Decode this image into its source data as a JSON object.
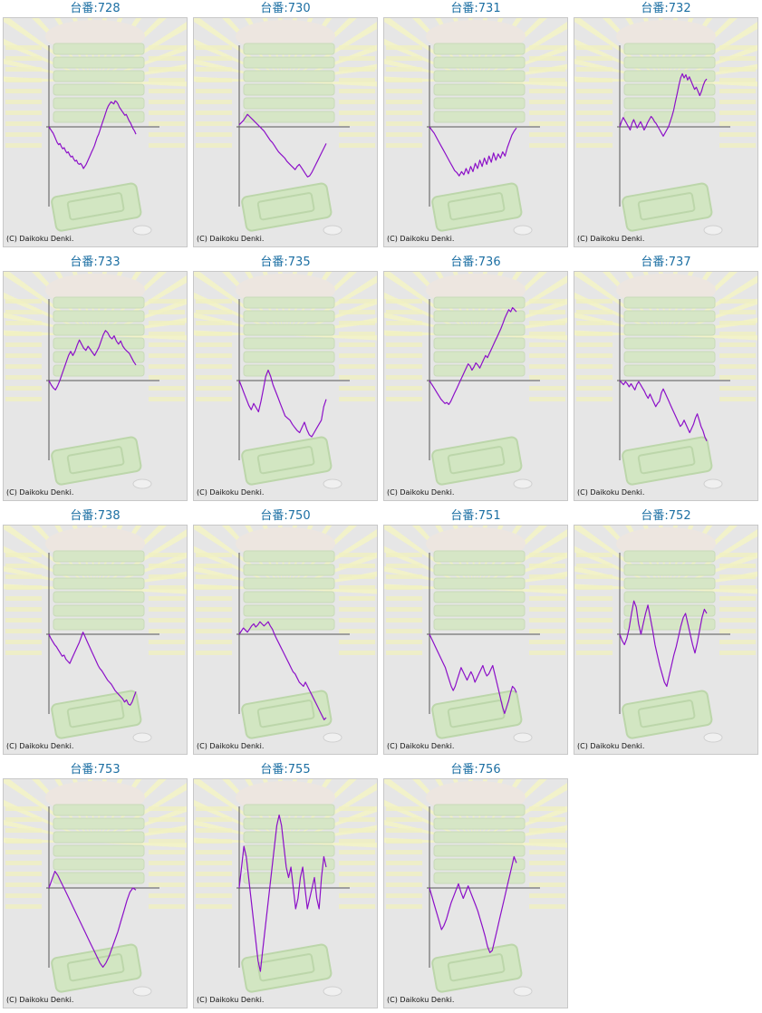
{
  "copyright": "(C) Daikoku Denki.",
  "colors": {
    "line": "#8c10c8",
    "axis": "#555555",
    "panel_bg": "#e6e6e6",
    "title": "#1c6fa3"
  },
  "chart_data": [
    {
      "type": "line",
      "title": "台番:728",
      "values": [
        0,
        -2,
        -4,
        -6,
        -9,
        -12,
        -15,
        -17,
        -16,
        -19,
        -21,
        -20,
        -23,
        -25,
        -24,
        -27,
        -29,
        -28,
        -31,
        -33,
        -32,
        -35,
        -36,
        -35,
        -37,
        -40,
        -38,
        -36,
        -33,
        -30,
        -27,
        -24,
        -21,
        -18,
        -14,
        -10,
        -7,
        -3,
        1,
        5,
        9,
        13,
        17,
        20,
        22,
        24,
        23,
        22,
        25,
        24,
        22,
        19,
        17,
        15,
        13,
        11,
        12,
        9,
        6,
        4,
        1,
        -2,
        -4,
        -7
      ]
    },
    {
      "type": "line",
      "title": "台番:730",
      "values": [
        2,
        4,
        6,
        9,
        12,
        10,
        8,
        6,
        4,
        2,
        0,
        -2,
        -4,
        -7,
        -10,
        -13,
        -15,
        -18,
        -21,
        -24,
        -26,
        -28,
        -30,
        -33,
        -35,
        -37,
        -39,
        -41,
        -38,
        -36,
        -39,
        -42,
        -45,
        -48,
        -47,
        -44,
        -40,
        -36,
        -32,
        -28,
        -24,
        -20,
        -16
      ]
    },
    {
      "type": "line",
      "title": "台番:731",
      "values": [
        0,
        -3,
        -6,
        -10,
        -14,
        -18,
        -22,
        -26,
        -30,
        -34,
        -38,
        -42,
        -44,
        -47,
        -43,
        -46,
        -40,
        -45,
        -38,
        -43,
        -35,
        -40,
        -32,
        -38,
        -30,
        -36,
        -28,
        -34,
        -25,
        -32,
        -26,
        -30,
        -24,
        -28,
        -20,
        -14,
        -8,
        -4,
        -1
      ]
    },
    {
      "type": "line",
      "title": "台番:732",
      "values": [
        0,
        5,
        9,
        6,
        3,
        0,
        -3,
        3,
        7,
        3,
        -1,
        2,
        5,
        1,
        -3,
        0,
        4,
        7,
        10,
        8,
        5,
        3,
        0,
        -3,
        -6,
        -9,
        -6,
        -3,
        0,
        5,
        10,
        16,
        24,
        32,
        40,
        47,
        51,
        47,
        50,
        45,
        48,
        44,
        40,
        36,
        38,
        34,
        30,
        34,
        40,
        44,
        46
      ]
    },
    {
      "type": "line",
      "title": "台番:733",
      "values": [
        0,
        -4,
        -7,
        -9,
        -5,
        0,
        6,
        12,
        18,
        24,
        28,
        24,
        28,
        34,
        39,
        35,
        31,
        29,
        33,
        30,
        27,
        24,
        28,
        32,
        38,
        44,
        48,
        46,
        42,
        40,
        43,
        38,
        35,
        38,
        33,
        30,
        28,
        26,
        22,
        18,
        15
      ]
    },
    {
      "type": "line",
      "title": "台番:735",
      "values": [
        0,
        -6,
        -12,
        -18,
        -24,
        -28,
        -22,
        -26,
        -30,
        -20,
        -8,
        4,
        10,
        4,
        -4,
        -10,
        -16,
        -22,
        -28,
        -34,
        -36,
        -38,
        -42,
        -45,
        -48,
        -50,
        -45,
        -40,
        -47,
        -52,
        -54,
        -50,
        -46,
        -42,
        -38,
        -25,
        -18
      ]
    },
    {
      "type": "line",
      "title": "台番:736",
      "values": [
        0,
        -3,
        -6,
        -9,
        -12,
        -15,
        -18,
        -20,
        -22,
        -21,
        -23,
        -20,
        -16,
        -12,
        -8,
        -4,
        0,
        4,
        8,
        12,
        16,
        14,
        10,
        13,
        17,
        15,
        12,
        16,
        20,
        24,
        22,
        26,
        30,
        34,
        38,
        42,
        46,
        50,
        55,
        60,
        64,
        68,
        66,
        70,
        68,
        66
      ]
    },
    {
      "type": "line",
      "title": "台番:737",
      "values": [
        0,
        -2,
        -4,
        -1,
        -3,
        -6,
        -3,
        -6,
        -9,
        -4,
        -1,
        -4,
        -7,
        -10,
        -14,
        -17,
        -13,
        -17,
        -21,
        -25,
        -22,
        -20,
        -12,
        -8,
        -12,
        -16,
        -20,
        -24,
        -28,
        -32,
        -36,
        -40,
        -44,
        -42,
        -38,
        -42,
        -46,
        -50,
        -46,
        -42,
        -36,
        -32,
        -38,
        -44,
        -48,
        -54,
        -58
      ]
    },
    {
      "type": "line",
      "title": "台番:738",
      "values": [
        0,
        -4,
        -7,
        -10,
        -12,
        -15,
        -18,
        -21,
        -20,
        -24,
        -26,
        -28,
        -24,
        -20,
        -16,
        -12,
        -8,
        -3,
        2,
        -2,
        -6,
        -10,
        -14,
        -18,
        -22,
        -26,
        -30,
        -33,
        -35,
        -38,
        -41,
        -44,
        -46,
        -48,
        -51,
        -54,
        -56,
        -58,
        -60,
        -62,
        -65,
        -63,
        -67,
        -68,
        -65,
        -60,
        -55
      ]
    },
    {
      "type": "line",
      "title": "台番:750",
      "values": [
        0,
        3,
        6,
        4,
        2,
        5,
        8,
        10,
        7,
        9,
        12,
        10,
        8,
        10,
        12,
        8,
        5,
        0,
        -4,
        -8,
        -12,
        -16,
        -20,
        -24,
        -28,
        -32,
        -36,
        -38,
        -42,
        -46,
        -48,
        -50,
        -46,
        -50,
        -54,
        -58,
        -62,
        -66,
        -70,
        -74,
        -78,
        -82,
        -80
      ]
    },
    {
      "type": "line",
      "title": "台番:751",
      "values": [
        0,
        -4,
        -8,
        -12,
        -16,
        -20,
        -24,
        -28,
        -32,
        -38,
        -44,
        -50,
        -54,
        -50,
        -44,
        -38,
        -32,
        -36,
        -40,
        -44,
        -40,
        -36,
        -40,
        -46,
        -42,
        -38,
        -34,
        -30,
        -36,
        -40,
        -38,
        -34,
        -30,
        -38,
        -46,
        -54,
        -62,
        -70,
        -76,
        -70,
        -64,
        -56,
        -50,
        -52,
        -56
      ]
    },
    {
      "type": "line",
      "title": "台番:752",
      "values": [
        0,
        -6,
        -10,
        -4,
        6,
        20,
        32,
        26,
        10,
        0,
        10,
        20,
        28,
        16,
        4,
        -10,
        -20,
        -30,
        -38,
        -46,
        -50,
        -40,
        -30,
        -20,
        -12,
        -2,
        8,
        16,
        20,
        10,
        0,
        -10,
        -18,
        -8,
        4,
        16,
        24,
        20
      ]
    },
    {
      "type": "line",
      "title": "台番:753",
      "values": [
        0,
        8,
        16,
        12,
        6,
        0,
        -6,
        -12,
        -18,
        -24,
        -30,
        -36,
        -42,
        -48,
        -54,
        -60,
        -66,
        -72,
        -76,
        -72,
        -66,
        -58,
        -50,
        -42,
        -32,
        -22,
        -12,
        -4,
        0,
        -2
      ]
    },
    {
      "type": "line",
      "title": "台番:755",
      "values": [
        0,
        20,
        40,
        30,
        10,
        -10,
        -30,
        -50,
        -70,
        -80,
        -60,
        -40,
        -20,
        0,
        20,
        40,
        60,
        70,
        60,
        40,
        20,
        10,
        20,
        0,
        -20,
        -10,
        10,
        20,
        0,
        -20,
        -10,
        0,
        10,
        -10,
        -20,
        10,
        30,
        20
      ]
    },
    {
      "type": "line",
      "title": "台番:756",
      "values": [
        0,
        -8,
        -16,
        -24,
        -32,
        -40,
        -36,
        -30,
        -22,
        -14,
        -8,
        -2,
        4,
        -4,
        -10,
        -4,
        2,
        -4,
        -10,
        -16,
        -22,
        -30,
        -38,
        -46,
        -56,
        -62,
        -60,
        -50,
        -40,
        -30,
        -20,
        -10,
        0,
        10,
        20,
        30,
        24
      ]
    }
  ]
}
